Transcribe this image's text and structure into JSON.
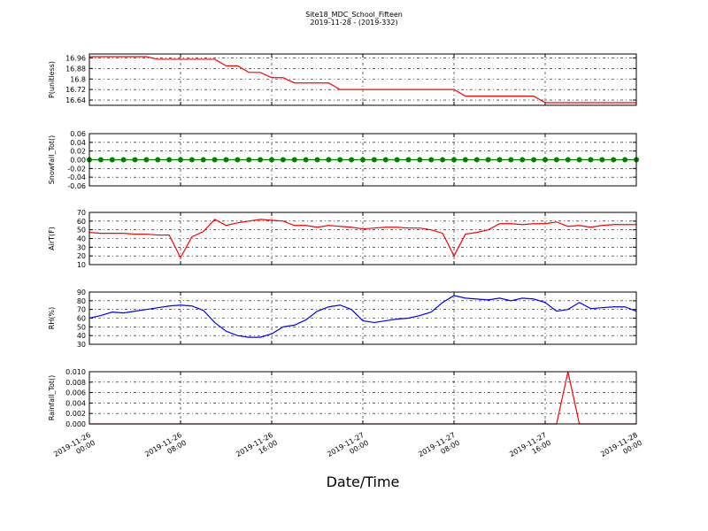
{
  "title": "Site18_MDC_School_Fifteen",
  "subtitle": "2019-11-28 - (2019-332)",
  "xlabel": "Date/Time",
  "chart_data": [
    {
      "type": "line",
      "ylabel": "P(unitless)",
      "ylim": [
        16.6,
        16.99
      ],
      "yticks": [
        16.64,
        16.72,
        16.8,
        16.88,
        16.96
      ],
      "xlim": [
        "2019-11-26 00:00",
        "2019-11-28 00:00"
      ],
      "xticks": [
        "2019-11-26 00:00",
        "2019-11-26 08:00",
        "2019-11-26 16:00",
        "2019-11-27 00:00",
        "2019-11-27 08:00",
        "2019-11-27 16:00",
        "2019-11-28 00:00"
      ],
      "grid": true,
      "x": [
        "2019-11-26 00:00",
        "2019-11-26 01:00",
        "2019-11-26 02:00",
        "2019-11-26 03:00",
        "2019-11-26 04:00",
        "2019-11-26 05:00",
        "2019-11-26 06:00",
        "2019-11-26 07:00",
        "2019-11-26 08:00",
        "2019-11-26 09:00",
        "2019-11-26 10:00",
        "2019-11-26 11:00",
        "2019-11-26 12:00",
        "2019-11-26 13:00",
        "2019-11-26 14:00",
        "2019-11-26 15:00",
        "2019-11-26 16:00",
        "2019-11-26 17:00",
        "2019-11-26 18:00",
        "2019-11-26 19:00",
        "2019-11-26 20:00",
        "2019-11-26 21:00",
        "2019-11-26 22:00",
        "2019-11-26 23:00",
        "2019-11-27 00:00",
        "2019-11-27 01:00",
        "2019-11-27 02:00",
        "2019-11-27 03:00",
        "2019-11-27 04:00",
        "2019-11-27 05:00",
        "2019-11-27 06:00",
        "2019-11-27 07:00",
        "2019-11-27 08:00",
        "2019-11-27 09:00",
        "2019-11-27 10:00",
        "2019-11-27 11:00",
        "2019-11-27 12:00",
        "2019-11-27 13:00",
        "2019-11-27 14:00",
        "2019-11-27 15:00",
        "2019-11-27 16:00",
        "2019-11-27 17:00",
        "2019-11-27 18:00",
        "2019-11-27 19:00",
        "2019-11-27 20:00",
        "2019-11-27 21:00",
        "2019-11-27 22:00",
        "2019-11-27 23:00",
        "2019-11-28 00:00"
      ],
      "series": [
        {
          "color": "#ff0000",
          "values": [
            16.97,
            16.97,
            16.97,
            16.97,
            16.97,
            16.97,
            16.95,
            16.95,
            16.95,
            16.95,
            16.95,
            16.95,
            16.9,
            16.9,
            16.85,
            16.85,
            16.81,
            16.81,
            16.77,
            16.77,
            16.77,
            16.77,
            16.72,
            16.72,
            16.72,
            16.72,
            16.72,
            16.72,
            16.72,
            16.72,
            16.72,
            16.72,
            16.72,
            16.67,
            16.67,
            16.67,
            16.67,
            16.67,
            16.67,
            16.67,
            16.62,
            16.62,
            16.62,
            16.62,
            16.62,
            16.62,
            16.62,
            16.62,
            16.62
          ]
        }
      ]
    },
    {
      "type": "line",
      "ylabel": "Snowfall_Tot()",
      "ylim": [
        -0.06,
        0.06
      ],
      "yticks": [
        -0.06,
        -0.04,
        -0.02,
        {
          "value": 0,
          "label": "0.00"
        },
        0.02,
        0.04,
        0.06
      ],
      "xlim": [
        "2019-11-26 00:00",
        "2019-11-28 00:00"
      ],
      "xticks": [
        "2019-11-26 00:00",
        "2019-11-26 08:00",
        "2019-11-26 16:00",
        "2019-11-27 00:00",
        "2019-11-27 08:00",
        "2019-11-27 16:00",
        "2019-11-28 00:00"
      ],
      "grid": true,
      "marker": true,
      "x": [
        "2019-11-26 00:00",
        "2019-11-26 01:00",
        "2019-11-26 02:00",
        "2019-11-26 03:00",
        "2019-11-26 04:00",
        "2019-11-26 05:00",
        "2019-11-26 06:00",
        "2019-11-26 07:00",
        "2019-11-26 08:00",
        "2019-11-26 09:00",
        "2019-11-26 10:00",
        "2019-11-26 11:00",
        "2019-11-26 12:00",
        "2019-11-26 13:00",
        "2019-11-26 14:00",
        "2019-11-26 15:00",
        "2019-11-26 16:00",
        "2019-11-26 17:00",
        "2019-11-26 18:00",
        "2019-11-26 19:00",
        "2019-11-26 20:00",
        "2019-11-26 21:00",
        "2019-11-26 22:00",
        "2019-11-26 23:00",
        "2019-11-27 00:00",
        "2019-11-27 01:00",
        "2019-11-27 02:00",
        "2019-11-27 03:00",
        "2019-11-27 04:00",
        "2019-11-27 05:00",
        "2019-11-27 06:00",
        "2019-11-27 07:00",
        "2019-11-27 08:00",
        "2019-11-27 09:00",
        "2019-11-27 10:00",
        "2019-11-27 11:00",
        "2019-11-27 12:00",
        "2019-11-27 13:00",
        "2019-11-27 14:00",
        "2019-11-27 15:00",
        "2019-11-27 16:00",
        "2019-11-27 17:00",
        "2019-11-27 18:00",
        "2019-11-27 19:00",
        "2019-11-27 20:00",
        "2019-11-27 21:00",
        "2019-11-27 22:00",
        "2019-11-27 23:00",
        "2019-11-28 00:00"
      ],
      "series": [
        {
          "color": "#008000",
          "values": [
            0,
            0,
            0,
            0,
            0,
            0,
            0,
            0,
            0,
            0,
            0,
            0,
            0,
            0,
            0,
            0,
            0,
            0,
            0,
            0,
            0,
            0,
            0,
            0,
            0,
            0,
            0,
            0,
            0,
            0,
            0,
            0,
            0,
            0,
            0,
            0,
            0,
            0,
            0,
            0,
            0,
            0,
            0,
            0,
            0,
            0,
            0,
            0,
            0
          ]
        }
      ]
    },
    {
      "type": "line",
      "ylabel": "AirT(F)",
      "ylim": [
        10,
        70
      ],
      "yticks": [
        10,
        20,
        30,
        40,
        50,
        60,
        70
      ],
      "xlim": [
        "2019-11-26 00:00",
        "2019-11-28 00:00"
      ],
      "xticks": [
        "2019-11-26 00:00",
        "2019-11-26 08:00",
        "2019-11-26 16:00",
        "2019-11-27 00:00",
        "2019-11-27 08:00",
        "2019-11-27 16:00",
        "2019-11-28 00:00"
      ],
      "grid": true,
      "x": [
        "2019-11-26 00:00",
        "2019-11-26 01:00",
        "2019-11-26 02:00",
        "2019-11-26 03:00",
        "2019-11-26 04:00",
        "2019-11-26 05:00",
        "2019-11-26 06:00",
        "2019-11-26 07:00",
        "2019-11-26 08:00",
        "2019-11-26 09:00",
        "2019-11-26 10:00",
        "2019-11-26 11:00",
        "2019-11-26 12:00",
        "2019-11-26 13:00",
        "2019-11-26 14:00",
        "2019-11-26 15:00",
        "2019-11-26 16:00",
        "2019-11-26 17:00",
        "2019-11-26 18:00",
        "2019-11-26 19:00",
        "2019-11-26 20:00",
        "2019-11-26 21:00",
        "2019-11-26 22:00",
        "2019-11-26 23:00",
        "2019-11-27 00:00",
        "2019-11-27 01:00",
        "2019-11-27 02:00",
        "2019-11-27 03:00",
        "2019-11-27 04:00",
        "2019-11-27 05:00",
        "2019-11-27 06:00",
        "2019-11-27 07:00",
        "2019-11-27 08:00",
        "2019-11-27 09:00",
        "2019-11-27 10:00",
        "2019-11-27 11:00",
        "2019-11-27 12:00",
        "2019-11-27 13:00",
        "2019-11-27 14:00",
        "2019-11-27 15:00",
        "2019-11-27 16:00",
        "2019-11-27 17:00",
        "2019-11-27 18:00",
        "2019-11-27 19:00",
        "2019-11-27 20:00",
        "2019-11-27 21:00",
        "2019-11-27 22:00",
        "2019-11-27 23:00",
        "2019-11-28 00:00"
      ],
      "series": [
        {
          "color": "#ff0000",
          "values": [
            47,
            46,
            46,
            46,
            45,
            45,
            44,
            44,
            18,
            42,
            48,
            62,
            55,
            58,
            60,
            62,
            61,
            60,
            55,
            55,
            53,
            55,
            54,
            53,
            51,
            52,
            53,
            53,
            52,
            52,
            50,
            46,
            20,
            45,
            47,
            50,
            57,
            57,
            56,
            57,
            57,
            59,
            54,
            55,
            53,
            55,
            56,
            56,
            56
          ]
        }
      ]
    },
    {
      "type": "line",
      "ylabel": "RH(%)",
      "ylim": [
        30,
        90
      ],
      "yticks": [
        30,
        40,
        50,
        60,
        70,
        80,
        90
      ],
      "xlim": [
        "2019-11-26 00:00",
        "2019-11-28 00:00"
      ],
      "xticks": [
        "2019-11-26 00:00",
        "2019-11-26 08:00",
        "2019-11-26 16:00",
        "2019-11-27 00:00",
        "2019-11-27 08:00",
        "2019-11-27 16:00",
        "2019-11-28 00:00"
      ],
      "grid": true,
      "x": [
        "2019-11-26 00:00",
        "2019-11-26 01:00",
        "2019-11-26 02:00",
        "2019-11-26 03:00",
        "2019-11-26 04:00",
        "2019-11-26 05:00",
        "2019-11-26 06:00",
        "2019-11-26 07:00",
        "2019-11-26 08:00",
        "2019-11-26 09:00",
        "2019-11-26 10:00",
        "2019-11-26 11:00",
        "2019-11-26 12:00",
        "2019-11-26 13:00",
        "2019-11-26 14:00",
        "2019-11-26 15:00",
        "2019-11-26 16:00",
        "2019-11-26 17:00",
        "2019-11-26 18:00",
        "2019-11-26 19:00",
        "2019-11-26 20:00",
        "2019-11-26 21:00",
        "2019-11-26 22:00",
        "2019-11-26 23:00",
        "2019-11-27 00:00",
        "2019-11-27 01:00",
        "2019-11-27 02:00",
        "2019-11-27 03:00",
        "2019-11-27 04:00",
        "2019-11-27 05:00",
        "2019-11-27 06:00",
        "2019-11-27 07:00",
        "2019-11-27 08:00",
        "2019-11-27 09:00",
        "2019-11-27 10:00",
        "2019-11-27 11:00",
        "2019-11-27 12:00",
        "2019-11-27 13:00",
        "2019-11-27 14:00",
        "2019-11-27 15:00",
        "2019-11-27 16:00",
        "2019-11-27 17:00",
        "2019-11-27 18:00",
        "2019-11-27 19:00",
        "2019-11-27 20:00",
        "2019-11-27 21:00",
        "2019-11-27 22:00",
        "2019-11-27 23:00",
        "2019-11-28 00:00"
      ],
      "series": [
        {
          "color": "#0000ff",
          "values": [
            60,
            63,
            67,
            66,
            68,
            70,
            72,
            74,
            75,
            74,
            69,
            55,
            45,
            40,
            38,
            38,
            42,
            50,
            52,
            58,
            68,
            73,
            75,
            70,
            57,
            55,
            57,
            59,
            60,
            63,
            67,
            78,
            86,
            83,
            82,
            81,
            83,
            80,
            83,
            82,
            78,
            68,
            70,
            78,
            71,
            72,
            73,
            73,
            68
          ]
        }
      ]
    },
    {
      "type": "line",
      "ylabel": "Rainfall_Tot()",
      "ylim": [
        0,
        0.01
      ],
      "yticks": [
        {
          "value": 0,
          "label": "0.000"
        },
        0.002,
        0.004,
        0.006,
        0.008,
        {
          "value": 0.01,
          "label": "0.010"
        }
      ],
      "xlim": [
        "2019-11-26 00:00",
        "2019-11-28 00:00"
      ],
      "xticks": [
        "2019-11-26 00:00",
        "2019-11-26 08:00",
        "2019-11-26 16:00",
        "2019-11-27 00:00",
        "2019-11-27 08:00",
        "2019-11-27 16:00",
        "2019-11-28 00:00"
      ],
      "grid": true,
      "x": [
        "2019-11-26 00:00",
        "2019-11-26 01:00",
        "2019-11-26 02:00",
        "2019-11-26 03:00",
        "2019-11-26 04:00",
        "2019-11-26 05:00",
        "2019-11-26 06:00",
        "2019-11-26 07:00",
        "2019-11-26 08:00",
        "2019-11-26 09:00",
        "2019-11-26 10:00",
        "2019-11-26 11:00",
        "2019-11-26 12:00",
        "2019-11-26 13:00",
        "2019-11-26 14:00",
        "2019-11-26 15:00",
        "2019-11-26 16:00",
        "2019-11-26 17:00",
        "2019-11-26 18:00",
        "2019-11-26 19:00",
        "2019-11-26 20:00",
        "2019-11-26 21:00",
        "2019-11-26 22:00",
        "2019-11-26 23:00",
        "2019-11-27 00:00",
        "2019-11-27 01:00",
        "2019-11-27 02:00",
        "2019-11-27 03:00",
        "2019-11-27 04:00",
        "2019-11-27 05:00",
        "2019-11-27 06:00",
        "2019-11-27 07:00",
        "2019-11-27 08:00",
        "2019-11-27 09:00",
        "2019-11-27 10:00",
        "2019-11-27 11:00",
        "2019-11-27 12:00",
        "2019-11-27 13:00",
        "2019-11-27 14:00",
        "2019-11-27 15:00",
        "2019-11-27 16:00",
        "2019-11-27 17:00",
        "2019-11-27 18:00",
        "2019-11-27 19:00",
        "2019-11-27 20:00",
        "2019-11-27 21:00",
        "2019-11-27 22:00",
        "2019-11-27 23:00",
        "2019-11-28 00:00"
      ],
      "series": [
        {
          "color": "#ff0000",
          "values": [
            0,
            0,
            0,
            0,
            0,
            0,
            0,
            0,
            0,
            0,
            0,
            0,
            0,
            0,
            0,
            0,
            0,
            0,
            0,
            0,
            0,
            0,
            0,
            0,
            0,
            0,
            0,
            0,
            0,
            0,
            0,
            0,
            0,
            0,
            0,
            0,
            0,
            0,
            0,
            0,
            0,
            0,
            0.01,
            0,
            0,
            0,
            0,
            0,
            0
          ]
        }
      ]
    }
  ]
}
